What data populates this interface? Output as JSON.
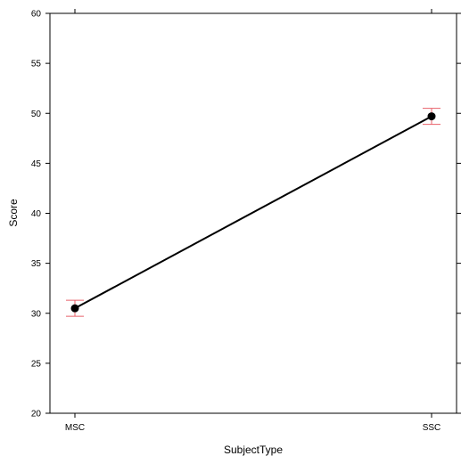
{
  "chart_data": {
    "type": "line",
    "title": "",
    "xlabel": "SubjectType",
    "ylabel": "Score",
    "categories": [
      "MSC",
      "SSC"
    ],
    "series": [
      {
        "values": [
          30.5,
          49.7
        ],
        "error_low": [
          29.7,
          48.9
        ],
        "error_high": [
          31.3,
          50.5
        ]
      }
    ],
    "ylim": [
      20,
      60
    ],
    "yticks": [
      20,
      25,
      30,
      35,
      40,
      45,
      50,
      55,
      60
    ],
    "grid": false,
    "legend": "none",
    "colors": {
      "line": "#000000",
      "point": "#000000",
      "error_bar": "#e8606a",
      "axis": "#000000"
    }
  }
}
